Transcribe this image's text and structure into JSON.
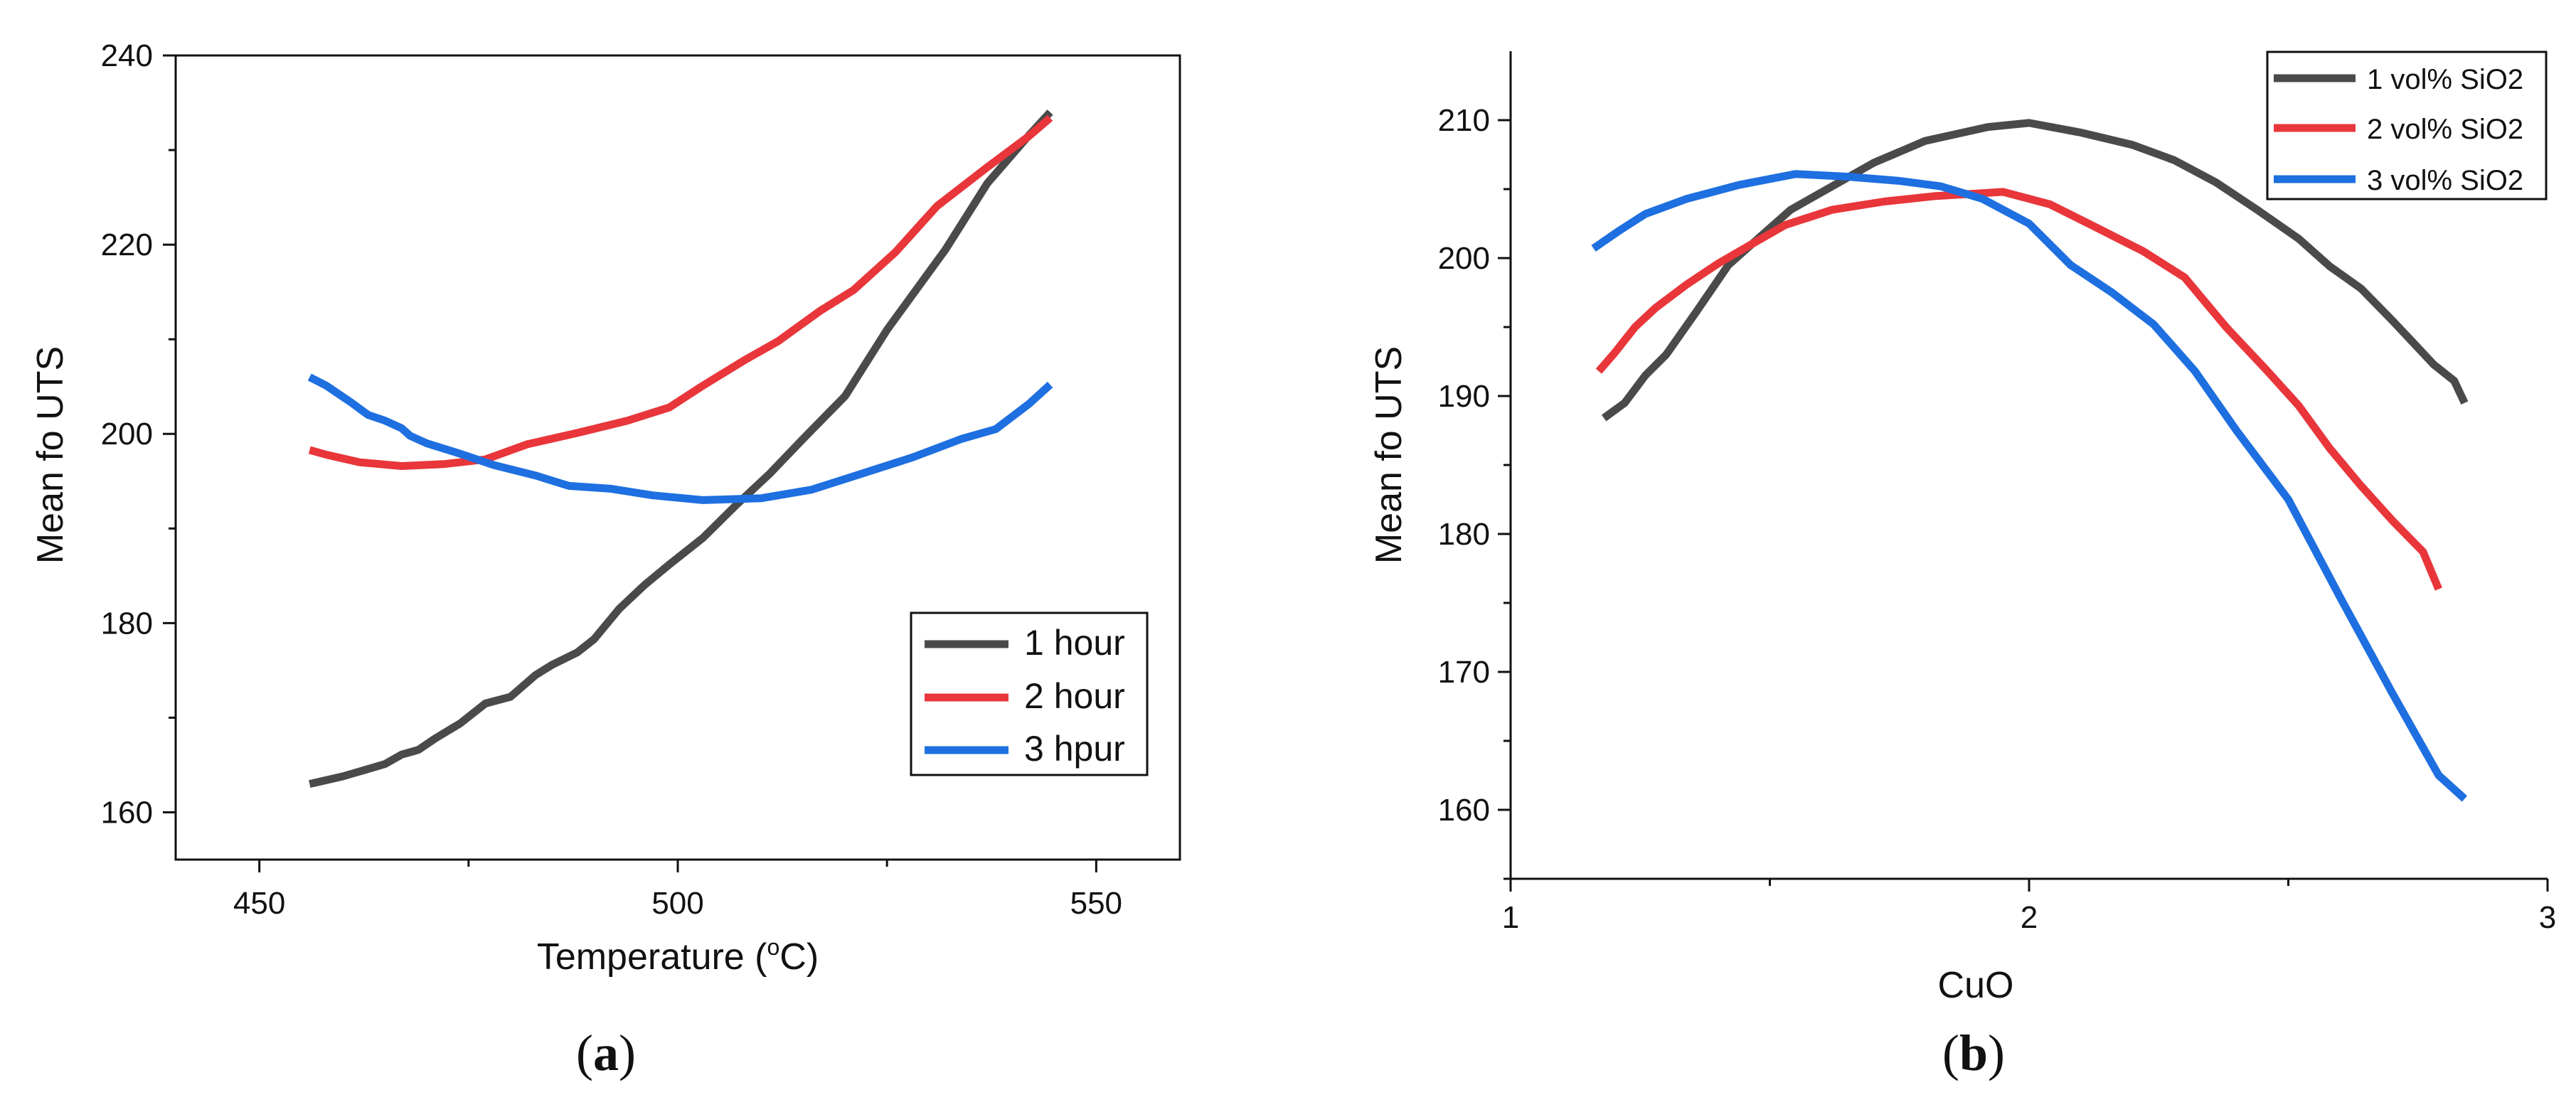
{
  "chart_data": [
    {
      "type": "line",
      "panel_label": "a",
      "xlabel": "Temperature (°C)",
      "xlabel_parts": {
        "pre": "Temperature (",
        "sup": "o",
        "post": "C)"
      },
      "ylabel": "Mean fo UTS",
      "xlim": [
        440,
        560
      ],
      "ylim": [
        155,
        240
      ],
      "xticks": [
        450,
        500,
        550
      ],
      "yticks": [
        160,
        180,
        200,
        220,
        240
      ],
      "legend_position": "lower-right",
      "series": [
        {
          "name": "1 hour",
          "color": "#4a4a4a",
          "x": [
            456,
            460,
            465,
            467,
            469,
            471,
            474,
            477,
            480,
            483,
            485,
            488,
            490,
            493,
            496,
            499,
            503,
            507,
            511,
            515,
            520,
            525,
            532,
            537,
            542,
            544.5
          ],
          "y": [
            163,
            163.8,
            165.1,
            166.1,
            166.6,
            167.8,
            169.4,
            171.5,
            172.2,
            174.5,
            175.6,
            176.9,
            178.3,
            181.5,
            184,
            186.2,
            189,
            192.5,
            195.8,
            199.5,
            204,
            211,
            219.5,
            226.5,
            231.6,
            234
          ]
        },
        {
          "name": "2 hour",
          "color": "#e8363a",
          "x": [
            456,
            458,
            462,
            467,
            472,
            477,
            482,
            488,
            494,
            499,
            503,
            508,
            512,
            517,
            521,
            526,
            531,
            537,
            542,
            544.5
          ],
          "y": [
            198.3,
            197.8,
            197,
            196.6,
            196.8,
            197.3,
            198.9,
            200.1,
            201.4,
            202.8,
            205.1,
            207.8,
            209.8,
            213,
            215.2,
            219.2,
            224.1,
            228.2,
            231.5,
            233.4
          ]
        },
        {
          "name": "3 hpur",
          "color": "#1e6fe0",
          "x": [
            456,
            458,
            461,
            463,
            465,
            467,
            468,
            470,
            474,
            478,
            483,
            487,
            492,
            497,
            503,
            510,
            516,
            522,
            528,
            534,
            538,
            542,
            544.5
          ],
          "y": [
            206,
            205.1,
            203.3,
            202,
            201.4,
            200.6,
            199.8,
            199,
            197.9,
            196.7,
            195.6,
            194.5,
            194.2,
            193.5,
            193,
            193.2,
            194.1,
            195.8,
            197.5,
            199.5,
            200.5,
            203.2,
            205.2
          ]
        }
      ]
    },
    {
      "type": "line",
      "panel_label": "b",
      "xlabel": "CuO",
      "ylabel": "Mean fo UTS",
      "xlim": [
        1,
        3
      ],
      "ylim": [
        155,
        215
      ],
      "xticks": [
        1,
        2,
        3
      ],
      "xticks_minor": [
        1.5,
        2.5
      ],
      "yticks": [
        160,
        170,
        180,
        190,
        200,
        210
      ],
      "legend_position": "top-right",
      "series": [
        {
          "name": "1 vol% SiO2",
          "color": "#4a4a4a",
          "x": [
            1.18,
            1.22,
            1.26,
            1.3,
            1.36,
            1.42,
            1.48,
            1.54,
            1.62,
            1.7,
            1.8,
            1.92,
            2.0,
            2.1,
            2.2,
            2.28,
            2.36,
            2.44,
            2.52,
            2.58,
            2.64,
            2.7,
            2.74,
            2.78,
            2.82,
            2.84
          ],
          "y": [
            188.4,
            189.5,
            191.5,
            193,
            196.2,
            199.5,
            201.5,
            203.5,
            205.2,
            206.9,
            208.5,
            209.5,
            209.8,
            209.1,
            208.2,
            207.1,
            205.5,
            203.5,
            201.4,
            199.4,
            197.8,
            195.5,
            193.9,
            192.3,
            191.1,
            189.5
          ]
        },
        {
          "name": "2 vol% SiO2",
          "color": "#e8363a",
          "x": [
            1.17,
            1.2,
            1.24,
            1.28,
            1.34,
            1.4,
            1.46,
            1.53,
            1.62,
            1.72,
            1.82,
            1.95,
            2.04,
            2.12,
            2.22,
            2.3,
            2.38,
            2.46,
            2.52,
            2.58,
            2.64,
            2.7,
            2.76,
            2.79
          ],
          "y": [
            191.8,
            193.1,
            195,
            196.4,
            198.1,
            199.6,
            200.9,
            202.4,
            203.5,
            204.1,
            204.5,
            204.8,
            203.9,
            202.4,
            200.5,
            198.6,
            195,
            191.8,
            189.3,
            186.2,
            183.5,
            181,
            178.7,
            176
          ]
        },
        {
          "name": "3 vol% SiO2",
          "color": "#1e6fe0",
          "x": [
            1.16,
            1.21,
            1.26,
            1.34,
            1.44,
            1.55,
            1.65,
            1.75,
            1.83,
            1.91,
            2.0,
            2.08,
            2.16,
            2.24,
            2.32,
            2.4,
            2.5,
            2.6,
            2.7,
            2.79,
            2.84
          ],
          "y": [
            200.7,
            202,
            203.2,
            204.3,
            205.3,
            206.1,
            205.9,
            205.6,
            205.2,
            204.3,
            202.5,
            199.5,
            197.5,
            195.2,
            191.8,
            187.5,
            182.5,
            175.4,
            168.5,
            162.5,
            160.8
          ]
        }
      ]
    }
  ]
}
